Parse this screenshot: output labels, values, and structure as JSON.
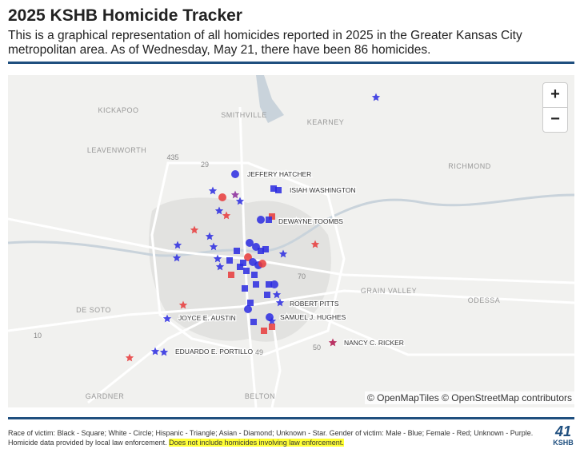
{
  "header": {
    "title": "2025 KSHB Homicide Tracker",
    "subtitle": "This is a graphical representation of all homicides reported in 2025 in the Greater Kansas City metropolitan area. As of Wednesday, May 21, there have been 86 homicides."
  },
  "map": {
    "places": [
      "KICKAPOO",
      "SMITHVILLE",
      "KEARNEY",
      "LEAVENWORTH",
      "RICHMOND",
      "GRAIN VALLEY",
      "ODESSA",
      "DE SOTO",
      "GARDNER",
      "BELTON"
    ],
    "roads": [
      "435",
      "29",
      "70",
      "10",
      "49",
      "50"
    ],
    "victims": [
      "JEFFERY HATCHER",
      "ISIAH WASHINGTON",
      "DEWAYNE TOOMBS",
      "ROBERT PITTS",
      "JOYCE E. AUSTIN",
      "SAMUEL J. HUGHES",
      "NANCY C. RICKER",
      "EDUARDO E. PORTILLO"
    ],
    "zoom_in": "+",
    "zoom_out": "−",
    "attribution": "© OpenMapTiles © OpenStreetMap contributors"
  },
  "footer": {
    "legend": "Race of victim: Black - Square; White - Circle; Hispanic - Triangle; Asian - Diamond; Unknown - Star. Gender of victim: Male - Blue; Female - Red; Unknown - Purple.",
    "source": "Homicide data provided by local law enforcement.",
    "note": "Does not include homicides involving law enforcement."
  },
  "logo": {
    "number": "41",
    "name": "KSHB"
  }
}
